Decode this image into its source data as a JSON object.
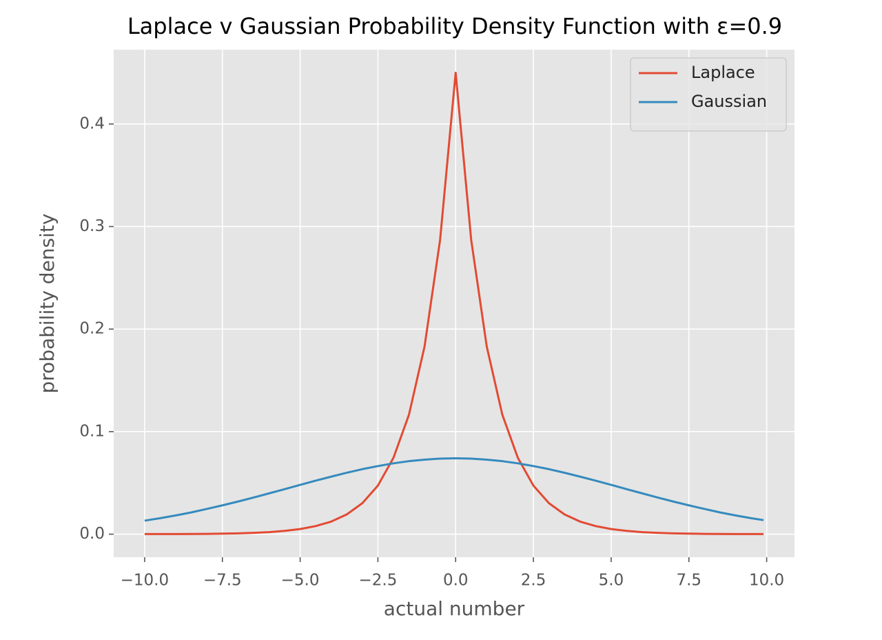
{
  "chart_data": {
    "type": "line",
    "title": "Laplace v Gaussian Probability Density Function with ε=0.9",
    "xlabel": "actual number",
    "ylabel": "probability density",
    "x": [
      -10,
      -9.5,
      -9,
      -8.5,
      -8,
      -7.5,
      -7,
      -6.5,
      -6,
      -5.5,
      -5,
      -4.5,
      -4,
      -3.5,
      -3,
      -2.5,
      -2,
      -1.5,
      -1,
      -0.5,
      0,
      0.5,
      1,
      1.5,
      2,
      2.5,
      3,
      3.5,
      4,
      4.5,
      5,
      5.5,
      6,
      6.5,
      7,
      7.5,
      8,
      8.5,
      9,
      9.5,
      9.9
    ],
    "series": [
      {
        "name": "Laplace",
        "color": "#E24A33",
        "values": [
          0.0001,
          0.0001,
          0.0001,
          0.0002,
          0.0003,
          0.0005,
          0.0008,
          0.0013,
          0.002,
          0.0032,
          0.005,
          0.0079,
          0.0123,
          0.0193,
          0.0302,
          0.0474,
          0.0744,
          0.1166,
          0.183,
          0.287,
          0.45,
          0.287,
          0.183,
          0.1166,
          0.0744,
          0.0474,
          0.0302,
          0.0193,
          0.0123,
          0.0079,
          0.005,
          0.0032,
          0.002,
          0.0013,
          0.0008,
          0.0005,
          0.0003,
          0.0002,
          0.0001,
          0.0001,
          0.0001
        ]
      },
      {
        "name": "Gaussian",
        "color": "#348ABD",
        "values": [
          0.0132,
          0.0156,
          0.0183,
          0.0212,
          0.0246,
          0.0281,
          0.0318,
          0.0357,
          0.0398,
          0.0439,
          0.0481,
          0.0522,
          0.0561,
          0.0599,
          0.0634,
          0.0664,
          0.0691,
          0.0712,
          0.0727,
          0.0737,
          0.074,
          0.0737,
          0.0727,
          0.0712,
          0.0691,
          0.0664,
          0.0634,
          0.0599,
          0.0561,
          0.0522,
          0.0481,
          0.0439,
          0.0398,
          0.0357,
          0.0318,
          0.0281,
          0.0246,
          0.0212,
          0.0183,
          0.0156,
          0.0137
        ]
      }
    ],
    "xlim": [
      -10.995,
      10.895
    ],
    "xticks": [
      {
        "value": -10,
        "label": "−10.0"
      },
      {
        "value": -7.5,
        "label": "−7.5"
      },
      {
        "value": -5,
        "label": "−5.0"
      },
      {
        "value": -2.5,
        "label": "−2.5"
      },
      {
        "value": 0,
        "label": "0.0"
      },
      2.5,
      {
        "value": 5,
        "label": "5.0"
      },
      7.5,
      {
        "value": 10,
        "label": "10.0"
      }
    ],
    "ylim": [
      -0.0225,
      0.4725
    ],
    "yticks": [
      {
        "value": 0,
        "label": "0.0"
      },
      0.1,
      0.2,
      0.3,
      0.4
    ],
    "grid": true,
    "legend": "upper right"
  }
}
